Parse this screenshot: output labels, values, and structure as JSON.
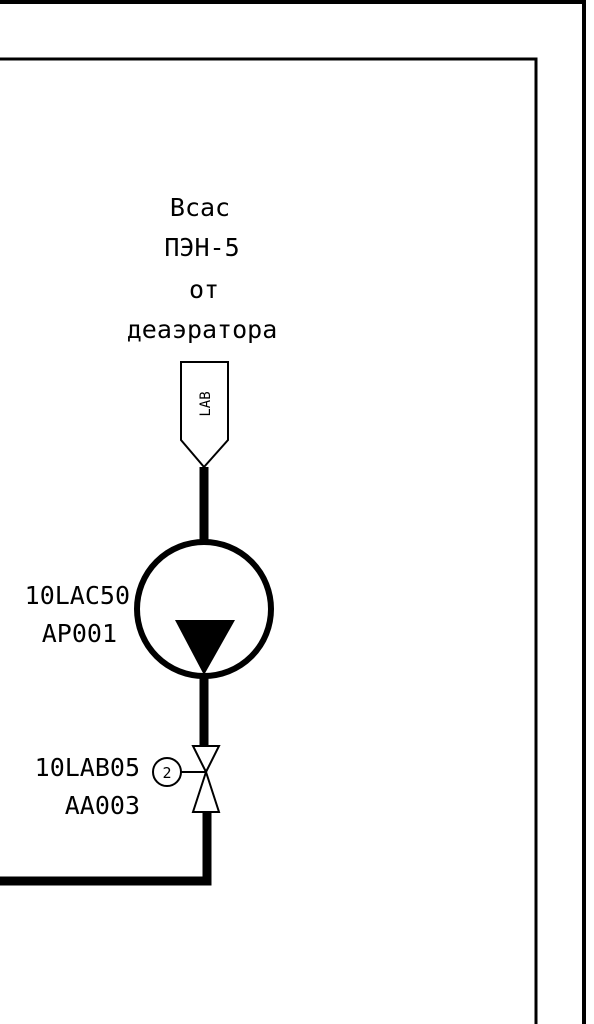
{
  "source_label": {
    "line1": "Всас",
    "line2": "ПЭН-5",
    "line3": "от",
    "line4": "деаэратора"
  },
  "flag_label": "LAB",
  "pump": {
    "tag_line1": "10LAC50",
    "tag_line2": "AP001"
  },
  "valve": {
    "tag_line1": "10LAB05",
    "tag_line2": "AA003",
    "actuator_symbol": "2"
  },
  "colors": {
    "line": "#000000",
    "background": "#ffffff"
  }
}
